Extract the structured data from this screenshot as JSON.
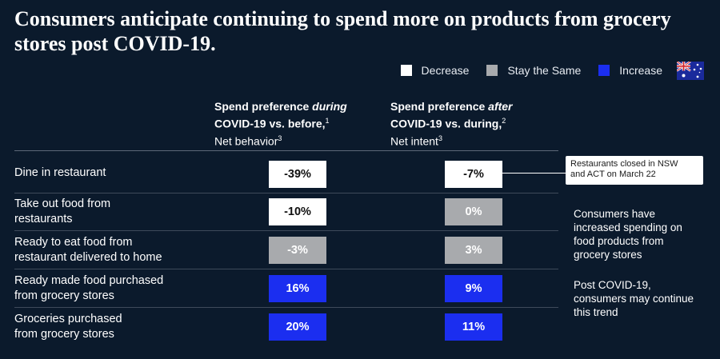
{
  "title": "Consumers anticipate continuing to spend more on products from grocery stores post COVID-19.",
  "colors": {
    "decrease": "#ffffff",
    "stay_same": "#a8aaad",
    "increase": "#1b2ef0",
    "background": "#0b1a2c"
  },
  "legend": [
    {
      "label": "Decrease",
      "key": "decrease"
    },
    {
      "label": "Stay the Same",
      "key": "stay_same"
    },
    {
      "label": "Increase",
      "key": "increase"
    }
  ],
  "flag_icon": "australia-flag-icon",
  "chart_data": {
    "type": "table",
    "title": "Consumers anticipate continuing to spend more on products from grocery stores post COVID-19.",
    "columns": [
      {
        "bold_a": "Spend preference ",
        "italic": "during",
        "bold_b": "COVID-19 vs. before,",
        "sup1": "1",
        "sub": "Net behavior",
        "sup2": "3"
      },
      {
        "bold_a": "Spend preference ",
        "italic": "after",
        "bold_b": "COVID-19 vs. during,",
        "sup1": "2",
        "sub": "Net intent",
        "sup2": "3"
      }
    ],
    "rows": [
      {
        "label_lines": [
          "Dine in restaurant"
        ],
        "values": [
          -39,
          -7
        ],
        "display": [
          "-39%",
          "-7%"
        ],
        "category": [
          "decrease",
          "decrease"
        ]
      },
      {
        "label_lines": [
          "Take out food from",
          "restaurants"
        ],
        "values": [
          -10,
          0
        ],
        "display": [
          "-10%",
          "0%"
        ],
        "category": [
          "decrease",
          "stay_same"
        ]
      },
      {
        "label_lines": [
          "Ready to eat food from",
          "restaurant delivered to home"
        ],
        "values": [
          -3,
          3
        ],
        "display": [
          "-3%",
          "3%"
        ],
        "category": [
          "stay_same",
          "stay_same"
        ]
      },
      {
        "label_lines": [
          "Ready made food purchased",
          "from grocery stores"
        ],
        "values": [
          16,
          9
        ],
        "display": [
          "16%",
          "9%"
        ],
        "category": [
          "increase",
          "increase"
        ]
      },
      {
        "label_lines": [
          "Groceries purchased",
          "from grocery stores"
        ],
        "values": [
          20,
          11
        ],
        "display": [
          "20%",
          "11%"
        ],
        "category": [
          "increase",
          "increase"
        ]
      }
    ]
  },
  "callout": {
    "lines": [
      "Restaurants closed in NSW",
      "and ACT on March 22"
    ]
  },
  "notes": [
    {
      "lines": [
        "Consumers have",
        "increased spending on",
        "food products from",
        "grocery stores"
      ]
    },
    {
      "lines": [
        "Post COVID-19,",
        "consumers may continue",
        "this trend"
      ]
    }
  ]
}
